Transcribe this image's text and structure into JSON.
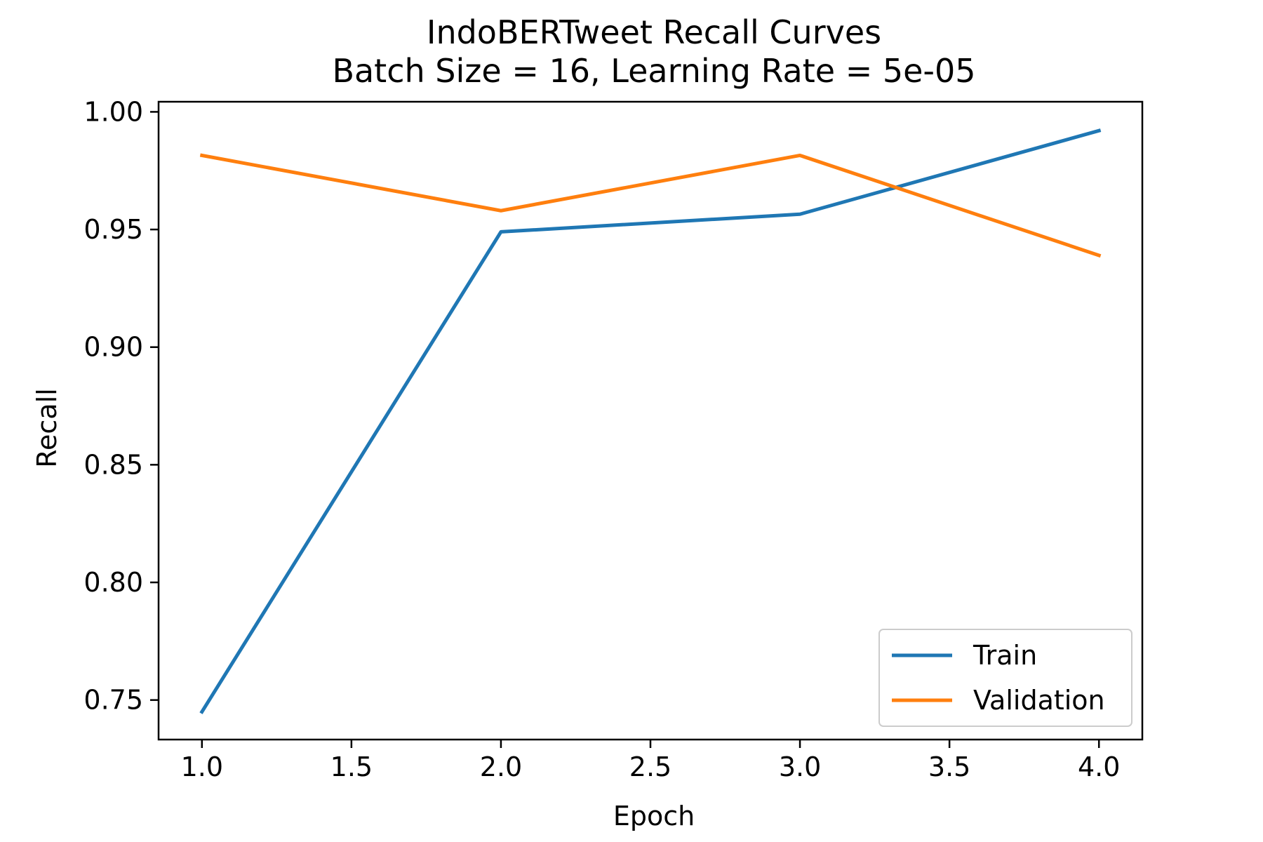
{
  "chart_data": {
    "type": "line",
    "title": "IndoBERTweet Recall Curves",
    "subtitle": "Batch Size = 16, Learning Rate = 5e-05",
    "xlabel": "Epoch",
    "ylabel": "Recall",
    "x": [
      1.0,
      2.0,
      3.0,
      4.0
    ],
    "xlim": [
      0.855,
      4.145
    ],
    "ylim": [
      0.7332,
      1.0043
    ],
    "xticks": [
      1.0,
      1.5,
      2.0,
      2.5,
      3.0,
      3.5,
      4.0
    ],
    "xtick_labels": [
      "1.0",
      "1.5",
      "2.0",
      "2.5",
      "3.0",
      "3.5",
      "4.0"
    ],
    "yticks": [
      0.75,
      0.8,
      0.85,
      0.9,
      0.95,
      1.0
    ],
    "ytick_labels": [
      "0.75",
      "0.80",
      "0.85",
      "0.90",
      "0.95",
      "1.00"
    ],
    "grid": false,
    "legend_position": "lower-right",
    "series": [
      {
        "name": "Train",
        "color": "#1f77b4",
        "values": [
          0.745,
          0.949,
          0.9565,
          0.992
        ]
      },
      {
        "name": "Validation",
        "color": "#ff7f0e",
        "values": [
          0.9815,
          0.958,
          0.9815,
          0.939
        ]
      }
    ]
  }
}
